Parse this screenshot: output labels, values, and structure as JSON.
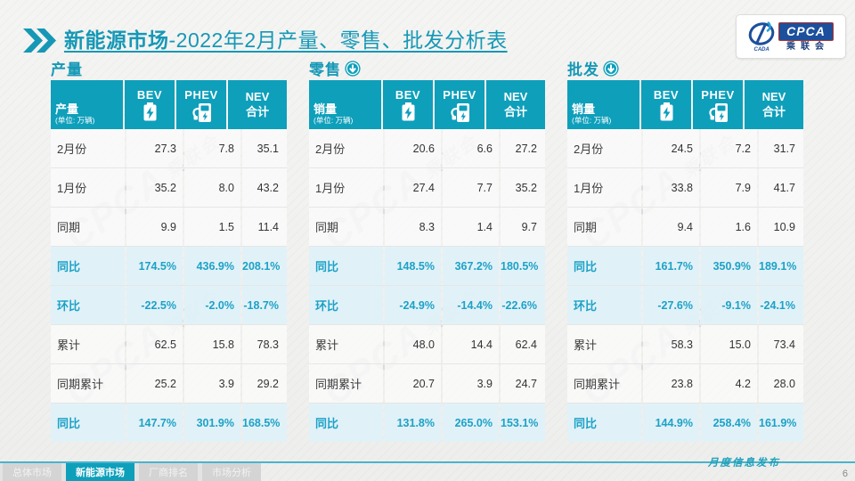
{
  "title": {
    "bold": "新能源市场",
    "rest": "-2022年2月产量、零售、批发分析表"
  },
  "logo": {
    "swoosh_text": "CADA",
    "main": "CPCA",
    "sub": "乘联会"
  },
  "columns": {
    "bev": "BEV",
    "phev": "PHEV",
    "nev_line1": "NEV",
    "nev_line2": "合计"
  },
  "unit": "(单位: 万辆)",
  "row_labels": [
    "2月份",
    "1月份",
    "同期",
    "同比",
    "环比",
    "累计",
    "同期累计",
    "同比"
  ],
  "percent_row_indexes": [
    3,
    4,
    7
  ],
  "watermark": {
    "text": "CPCA",
    "sub": "乘联会"
  },
  "chart_data": {
    "type": "table",
    "tables": [
      {
        "section_title": "产量",
        "has_arrow": false,
        "measure_label": "产量",
        "col_headers": [
          "BEV",
          "PHEV",
          "NEV合计"
        ],
        "rows": [
          [
            "27.3",
            "7.8",
            "35.1"
          ],
          [
            "35.2",
            "8.0",
            "43.2"
          ],
          [
            "9.9",
            "1.5",
            "11.4"
          ],
          [
            "174.5%",
            "436.9%",
            "208.1%"
          ],
          [
            "-22.5%",
            "-2.0%",
            "-18.7%"
          ],
          [
            "62.5",
            "15.8",
            "78.3"
          ],
          [
            "25.2",
            "3.9",
            "29.2"
          ],
          [
            "147.7%",
            "301.9%",
            "168.5%"
          ]
        ]
      },
      {
        "section_title": "零售",
        "has_arrow": true,
        "measure_label": "销量",
        "col_headers": [
          "BEV",
          "PHEV",
          "NEV合计"
        ],
        "rows": [
          [
            "20.6",
            "6.6",
            "27.2"
          ],
          [
            "27.4",
            "7.7",
            "35.2"
          ],
          [
            "8.3",
            "1.4",
            "9.7"
          ],
          [
            "148.5%",
            "367.2%",
            "180.5%"
          ],
          [
            "-24.9%",
            "-14.4%",
            "-22.6%"
          ],
          [
            "48.0",
            "14.4",
            "62.4"
          ],
          [
            "20.7",
            "3.9",
            "24.7"
          ],
          [
            "131.8%",
            "265.0%",
            "153.1%"
          ]
        ]
      },
      {
        "section_title": "批发",
        "has_arrow": true,
        "measure_label": "销量",
        "col_headers": [
          "BEV",
          "PHEV",
          "NEV合计"
        ],
        "rows": [
          [
            "24.5",
            "7.2",
            "31.7"
          ],
          [
            "33.8",
            "7.9",
            "41.7"
          ],
          [
            "9.4",
            "1.6",
            "10.9"
          ],
          [
            "161.7%",
            "350.9%",
            "189.1%"
          ],
          [
            "-27.6%",
            "-9.1%",
            "-24.1%"
          ],
          [
            "58.3",
            "15.0",
            "73.4"
          ],
          [
            "23.8",
            "4.2",
            "28.0"
          ],
          [
            "144.9%",
            "258.4%",
            "161.9%"
          ]
        ]
      }
    ]
  },
  "footer": {
    "tabs": [
      {
        "label": "总体市场",
        "active": false
      },
      {
        "label": "新能源市场",
        "active": true
      },
      {
        "label": "厂商排名",
        "active": false
      },
      {
        "label": "市场分析",
        "active": false
      }
    ],
    "release": "月度信息发布",
    "page": "6"
  },
  "colors": {
    "teal": "#0E9FBB",
    "title_teal": "#1598B6",
    "highlight_bg": "#DFF1F8",
    "highlight_text": "#1CA2C6",
    "logo_blue": "#1C4F9C"
  }
}
